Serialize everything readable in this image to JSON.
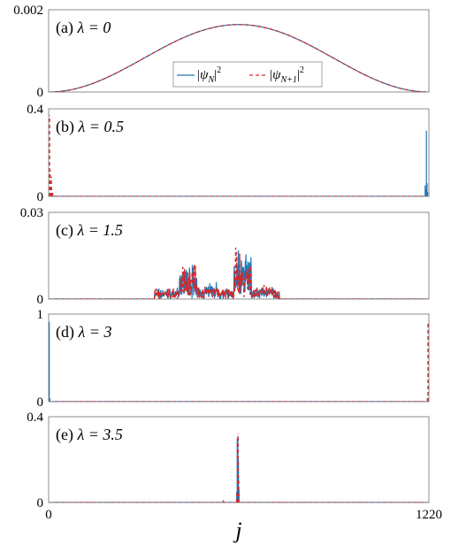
{
  "chart_data": {
    "type": "line",
    "xlabel": "j",
    "xlim": [
      0,
      1220
    ],
    "x_ticks": [
      "0",
      "1220"
    ],
    "colors": {
      "psi_N": "#1f77b4",
      "psi_N1": "#d62728"
    },
    "legend": {
      "placement": "center",
      "panel": 0,
      "entries": [
        {
          "series": "psi_N",
          "text": "|ψ",
          "sub": "N",
          "sup": "2",
          "style": "solid"
        },
        {
          "series": "psi_N1",
          "text": "|ψ",
          "sub": "N+1",
          "sup": "2",
          "style": "dashed"
        }
      ]
    },
    "panels": [
      {
        "label": "(a)",
        "lambda_text": "λ = 0",
        "ylim": [
          0,
          0.002
        ],
        "y_ticks": [
          "0",
          "0.002"
        ],
        "kind": "sine",
        "series": [
          {
            "name": "psi_N",
            "peak": 0.00164
          },
          {
            "name": "psi_N1",
            "peak": 0.00164
          }
        ]
      },
      {
        "label": "(b)",
        "lambda_text": "λ = 0.5",
        "ylim": [
          0,
          0.4
        ],
        "y_ticks": [
          "0",
          "0.4"
        ],
        "kind": "spikes",
        "series": [
          {
            "name": "psi_N",
            "spikes": [
              [
                1208,
                0.05
              ],
              [
                1210,
                0.03
              ],
              [
                1212,
                0.3
              ],
              [
                1214,
                0.06
              ],
              [
                1216,
                0.02
              ]
            ]
          },
          {
            "name": "psi_N1",
            "spikes": [
              [
                1,
                0.02
              ],
              [
                3,
                0.37
              ],
              [
                5,
                0.12
              ],
              [
                7,
                0.05
              ],
              [
                9,
                0.09
              ],
              [
                11,
                0.03
              ],
              [
                13,
                0.02
              ]
            ]
          }
        ]
      },
      {
        "label": "(c)",
        "lambda_text": "λ = 1.5",
        "ylim": [
          0,
          0.03
        ],
        "y_ticks": [
          "0",
          "0.03"
        ],
        "kind": "noise",
        "regions": [
          {
            "start": 340,
            "end": 740,
            "base": 0.002,
            "amp": 0.002
          },
          {
            "start": 420,
            "end": 475,
            "base": 0.006,
            "amp": 0.008
          },
          {
            "start": 595,
            "end": 650,
            "base": 0.008,
            "amp": 0.011
          },
          {
            "start": 500,
            "end": 540,
            "base": 0.003,
            "amp": 0.003
          },
          {
            "start": 680,
            "end": 720,
            "base": 0.003,
            "amp": 0.002
          }
        ],
        "series": [
          {
            "name": "psi_N"
          },
          {
            "name": "psi_N1"
          }
        ]
      },
      {
        "label": "(d)",
        "lambda_text": "λ = 3",
        "ylim": [
          0,
          1
        ],
        "y_ticks": [
          "0",
          "1"
        ],
        "kind": "spikes",
        "series": [
          {
            "name": "psi_N",
            "spikes": [
              [
                2,
                0.91
              ],
              [
                4,
                0.04
              ]
            ]
          },
          {
            "name": "psi_N1",
            "spikes": [
              [
                1217,
                0.92
              ],
              [
                1215,
                0.04
              ]
            ]
          }
        ]
      },
      {
        "label": "(e)",
        "lambda_text": "λ = 3.5",
        "ylim": [
          0,
          0.4
        ],
        "y_ticks": [
          "0",
          "0.4"
        ],
        "kind": "spikes",
        "series": [
          {
            "name": "psi_N",
            "spikes": [
              [
                605,
                0.3
              ],
              [
                607,
                0.31
              ],
              [
                609,
                0.2
              ],
              [
                611,
                0.06
              ],
              [
                603,
                0.05
              ],
              [
                560,
                0.01
              ]
            ]
          },
          {
            "name": "psi_N1",
            "spikes": [
              [
                606,
                0.29
              ],
              [
                608,
                0.32
              ],
              [
                610,
                0.12
              ],
              [
                604,
                0.04
              ],
              [
                561,
                0.01
              ]
            ]
          }
        ]
      }
    ]
  }
}
